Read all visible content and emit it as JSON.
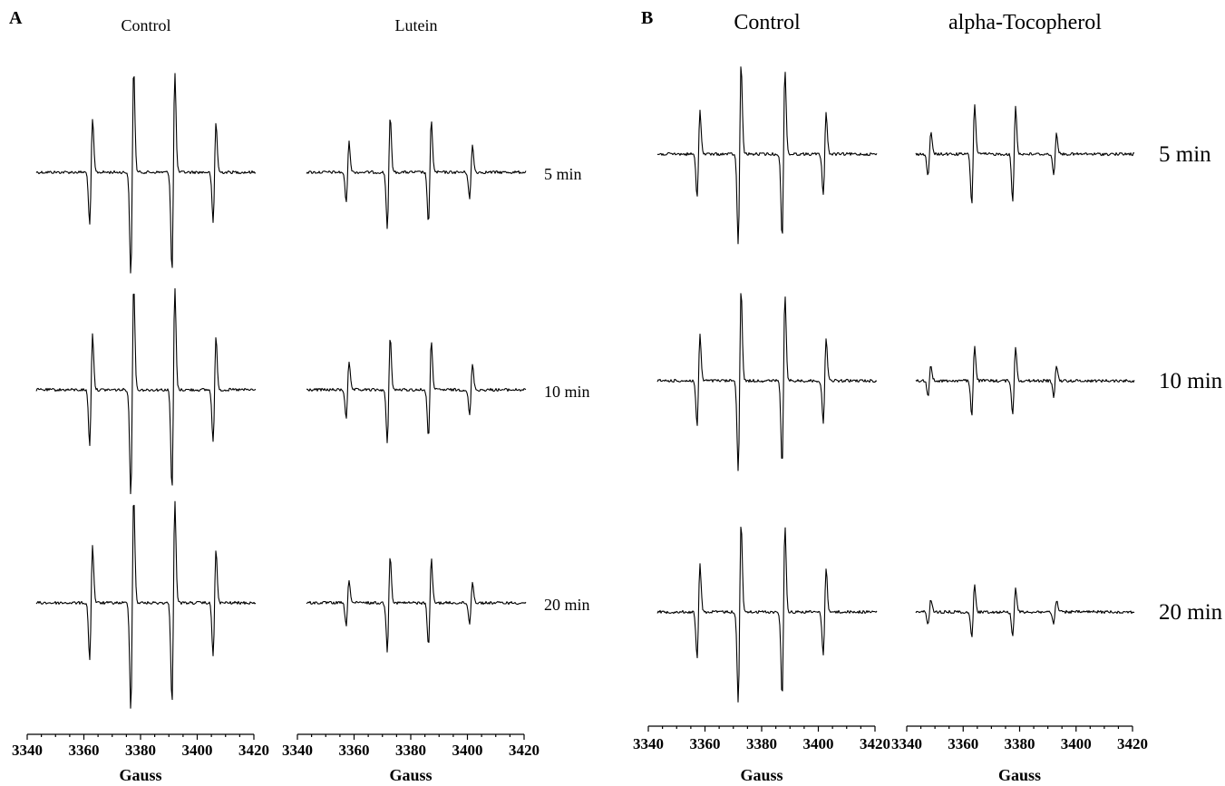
{
  "chart_data": [
    {
      "panel": "A",
      "type": "line",
      "chart_kind": "EPR spectra (derivative lineshape, 1:2:2:1 quartet)",
      "columns": [
        "Control",
        "Lutein"
      ],
      "rows": [
        "5 min",
        "10 min",
        "20 min"
      ],
      "xlabel": "Gauss",
      "xlim": [
        3340,
        3420
      ],
      "xticks": [
        3340,
        3360,
        3380,
        3400,
        3420
      ],
      "grid": false,
      "series": [
        {
          "column": "Control",
          "row": "5 min",
          "peak_positions": [
            3360,
            3375,
            3390,
            3405
          ],
          "peak_amplitudes": [
            0.5,
            0.98,
            0.93,
            0.47
          ]
        },
        {
          "column": "Lutein",
          "row": "5 min",
          "peak_positions": [
            3355,
            3370,
            3385,
            3400
          ],
          "peak_amplitudes": [
            0.28,
            0.52,
            0.49,
            0.25
          ]
        },
        {
          "column": "Control",
          "row": "10 min",
          "peak_positions": [
            3360,
            3375,
            3390,
            3405
          ],
          "peak_amplitudes": [
            0.52,
            1.0,
            0.95,
            0.49
          ]
        },
        {
          "column": "Lutein",
          "row": "10 min",
          "peak_positions": [
            3355,
            3370,
            3385,
            3400
          ],
          "peak_amplitudes": [
            0.26,
            0.5,
            0.46,
            0.24
          ]
        },
        {
          "column": "Control",
          "row": "20 min",
          "peak_positions": [
            3360,
            3375,
            3390,
            3405
          ],
          "peak_amplitudes": [
            0.53,
            1.0,
            0.95,
            0.49
          ]
        },
        {
          "column": "Lutein",
          "row": "20 min",
          "peak_positions": [
            3355,
            3370,
            3385,
            3400
          ],
          "peak_amplitudes": [
            0.22,
            0.45,
            0.41,
            0.2
          ]
        }
      ]
    },
    {
      "panel": "B",
      "type": "line",
      "chart_kind": "EPR spectra (derivative lineshape, 1:2:2:1 quartet)",
      "columns": [
        "Control",
        "alpha-Tocopherol"
      ],
      "rows": [
        "5 min",
        "10 min",
        "20 min"
      ],
      "xlabel": "Gauss",
      "xlim": [
        3340,
        3420
      ],
      "xticks": [
        3340,
        3360,
        3380,
        3400,
        3420
      ],
      "grid": false,
      "series": [
        {
          "column": "Control",
          "row": "5 min",
          "peak_positions": [
            3355,
            3370,
            3386,
            3401
          ],
          "peak_amplitudes": [
            0.48,
            1.0,
            0.94,
            0.46
          ]
        },
        {
          "column": "alpha-Tocopherol",
          "row": "5 min",
          "peak_positions": [
            3345,
            3361,
            3376,
            3391
          ],
          "peak_amplitudes": [
            0.25,
            0.56,
            0.52,
            0.23
          ]
        },
        {
          "column": "Control",
          "row": "10 min",
          "peak_positions": [
            3355,
            3370,
            3386,
            3401
          ],
          "peak_amplitudes": [
            0.5,
            1.0,
            0.95,
            0.48
          ]
        },
        {
          "column": "alpha-Tocopherol",
          "row": "10 min",
          "peak_positions": [
            3345,
            3361,
            3376,
            3391
          ],
          "peak_amplitudes": [
            0.17,
            0.39,
            0.38,
            0.17
          ]
        },
        {
          "column": "Control",
          "row": "20 min",
          "peak_positions": [
            3355,
            3370,
            3386,
            3401
          ],
          "peak_amplitudes": [
            0.52,
            1.0,
            0.94,
            0.48
          ]
        },
        {
          "column": "alpha-Tocopherol",
          "row": "20 min",
          "peak_positions": [
            3345,
            3361,
            3376,
            3391
          ],
          "peak_amplitudes": [
            0.14,
            0.29,
            0.27,
            0.13
          ]
        }
      ]
    }
  ]
}
